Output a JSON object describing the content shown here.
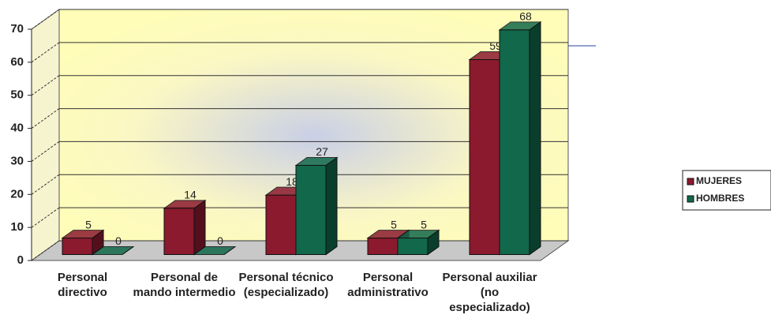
{
  "chart_data": {
    "type": "bar3d",
    "categories": [
      "Personal directivo",
      "Personal de mando intermedio",
      "Personal técnico (especializado)",
      "Personal administrativo",
      "Personal auxiliar (no especializado)"
    ],
    "series": [
      {
        "name": "MUJERES",
        "color": "#8b1a2e",
        "values": [
          5,
          14,
          18,
          5,
          59
        ]
      },
      {
        "name": "HOMBRES",
        "color": "#11684a",
        "values": [
          0,
          0,
          27,
          5,
          68
        ]
      }
    ],
    "ylim": [
      0,
      70
    ],
    "yticks": [
      0,
      10,
      20,
      30,
      40,
      50,
      60,
      70
    ],
    "grid": true,
    "legend": "right"
  }
}
